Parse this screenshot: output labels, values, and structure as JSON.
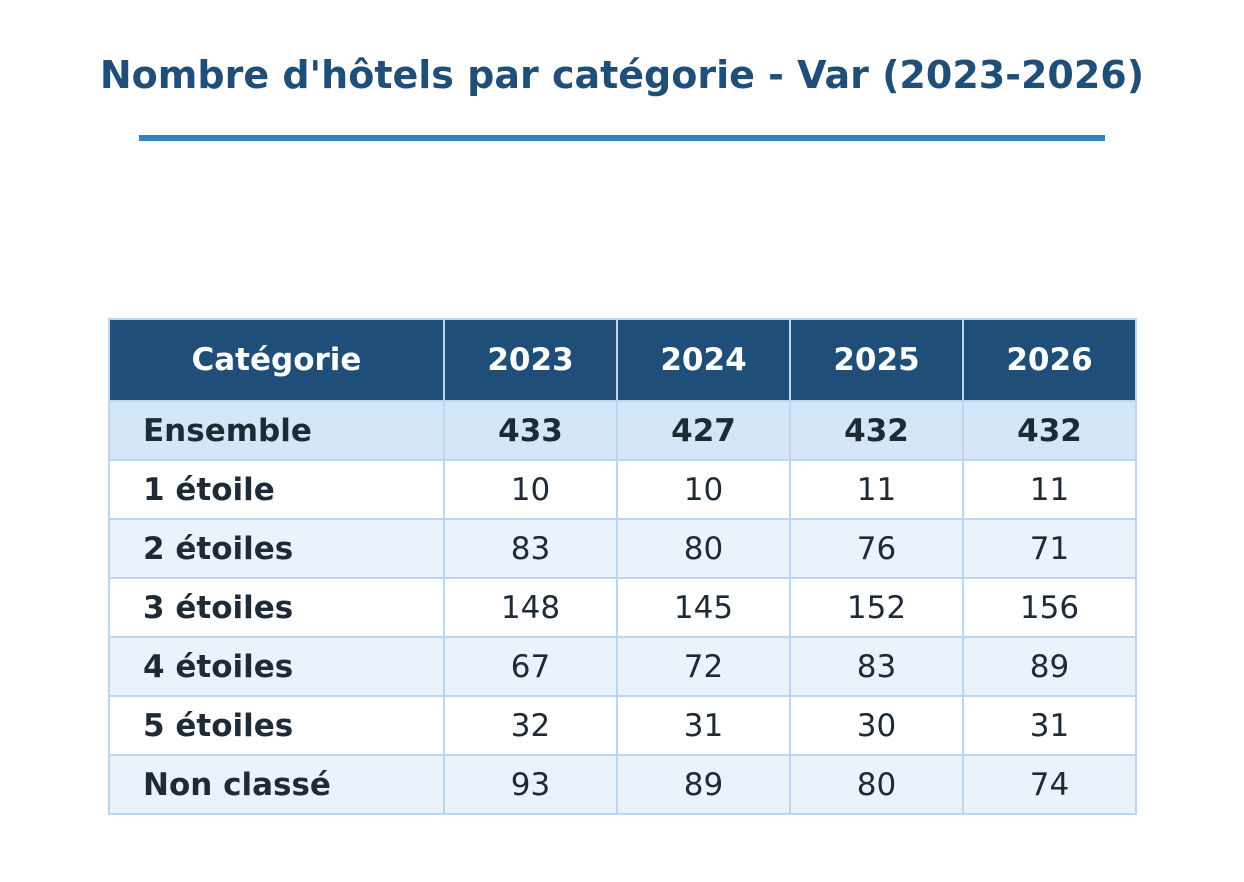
{
  "title": "Nombre d'hôtels par catégorie - Var (2023-2026)",
  "colors": {
    "title": "#1f4e79",
    "rule": "#2e86c1",
    "header_bg": "#1f4e79",
    "summary_bg": "#d4e6f7",
    "stripe_bg": "#eaf3fb",
    "border": "#bcd6ef"
  },
  "chart_data": {
    "type": "table",
    "title": "Nombre d'hôtels par catégorie - Var (2023-2026)",
    "columns": [
      "Catégorie",
      "2023",
      "2024",
      "2025",
      "2026"
    ],
    "rows": [
      {
        "category": "Ensemble",
        "values": [
          433,
          427,
          432,
          432
        ],
        "summary": true
      },
      {
        "category": "1 étoile",
        "values": [
          10,
          10,
          11,
          11
        ]
      },
      {
        "category": "2 étoiles",
        "values": [
          83,
          80,
          76,
          71
        ]
      },
      {
        "category": "3 étoiles",
        "values": [
          148,
          145,
          152,
          156
        ]
      },
      {
        "category": "4 étoiles",
        "values": [
          67,
          72,
          83,
          89
        ]
      },
      {
        "category": "5 étoiles",
        "values": [
          32,
          31,
          30,
          31
        ]
      },
      {
        "category": "Non classé",
        "values": [
          93,
          89,
          80,
          74
        ]
      }
    ]
  }
}
